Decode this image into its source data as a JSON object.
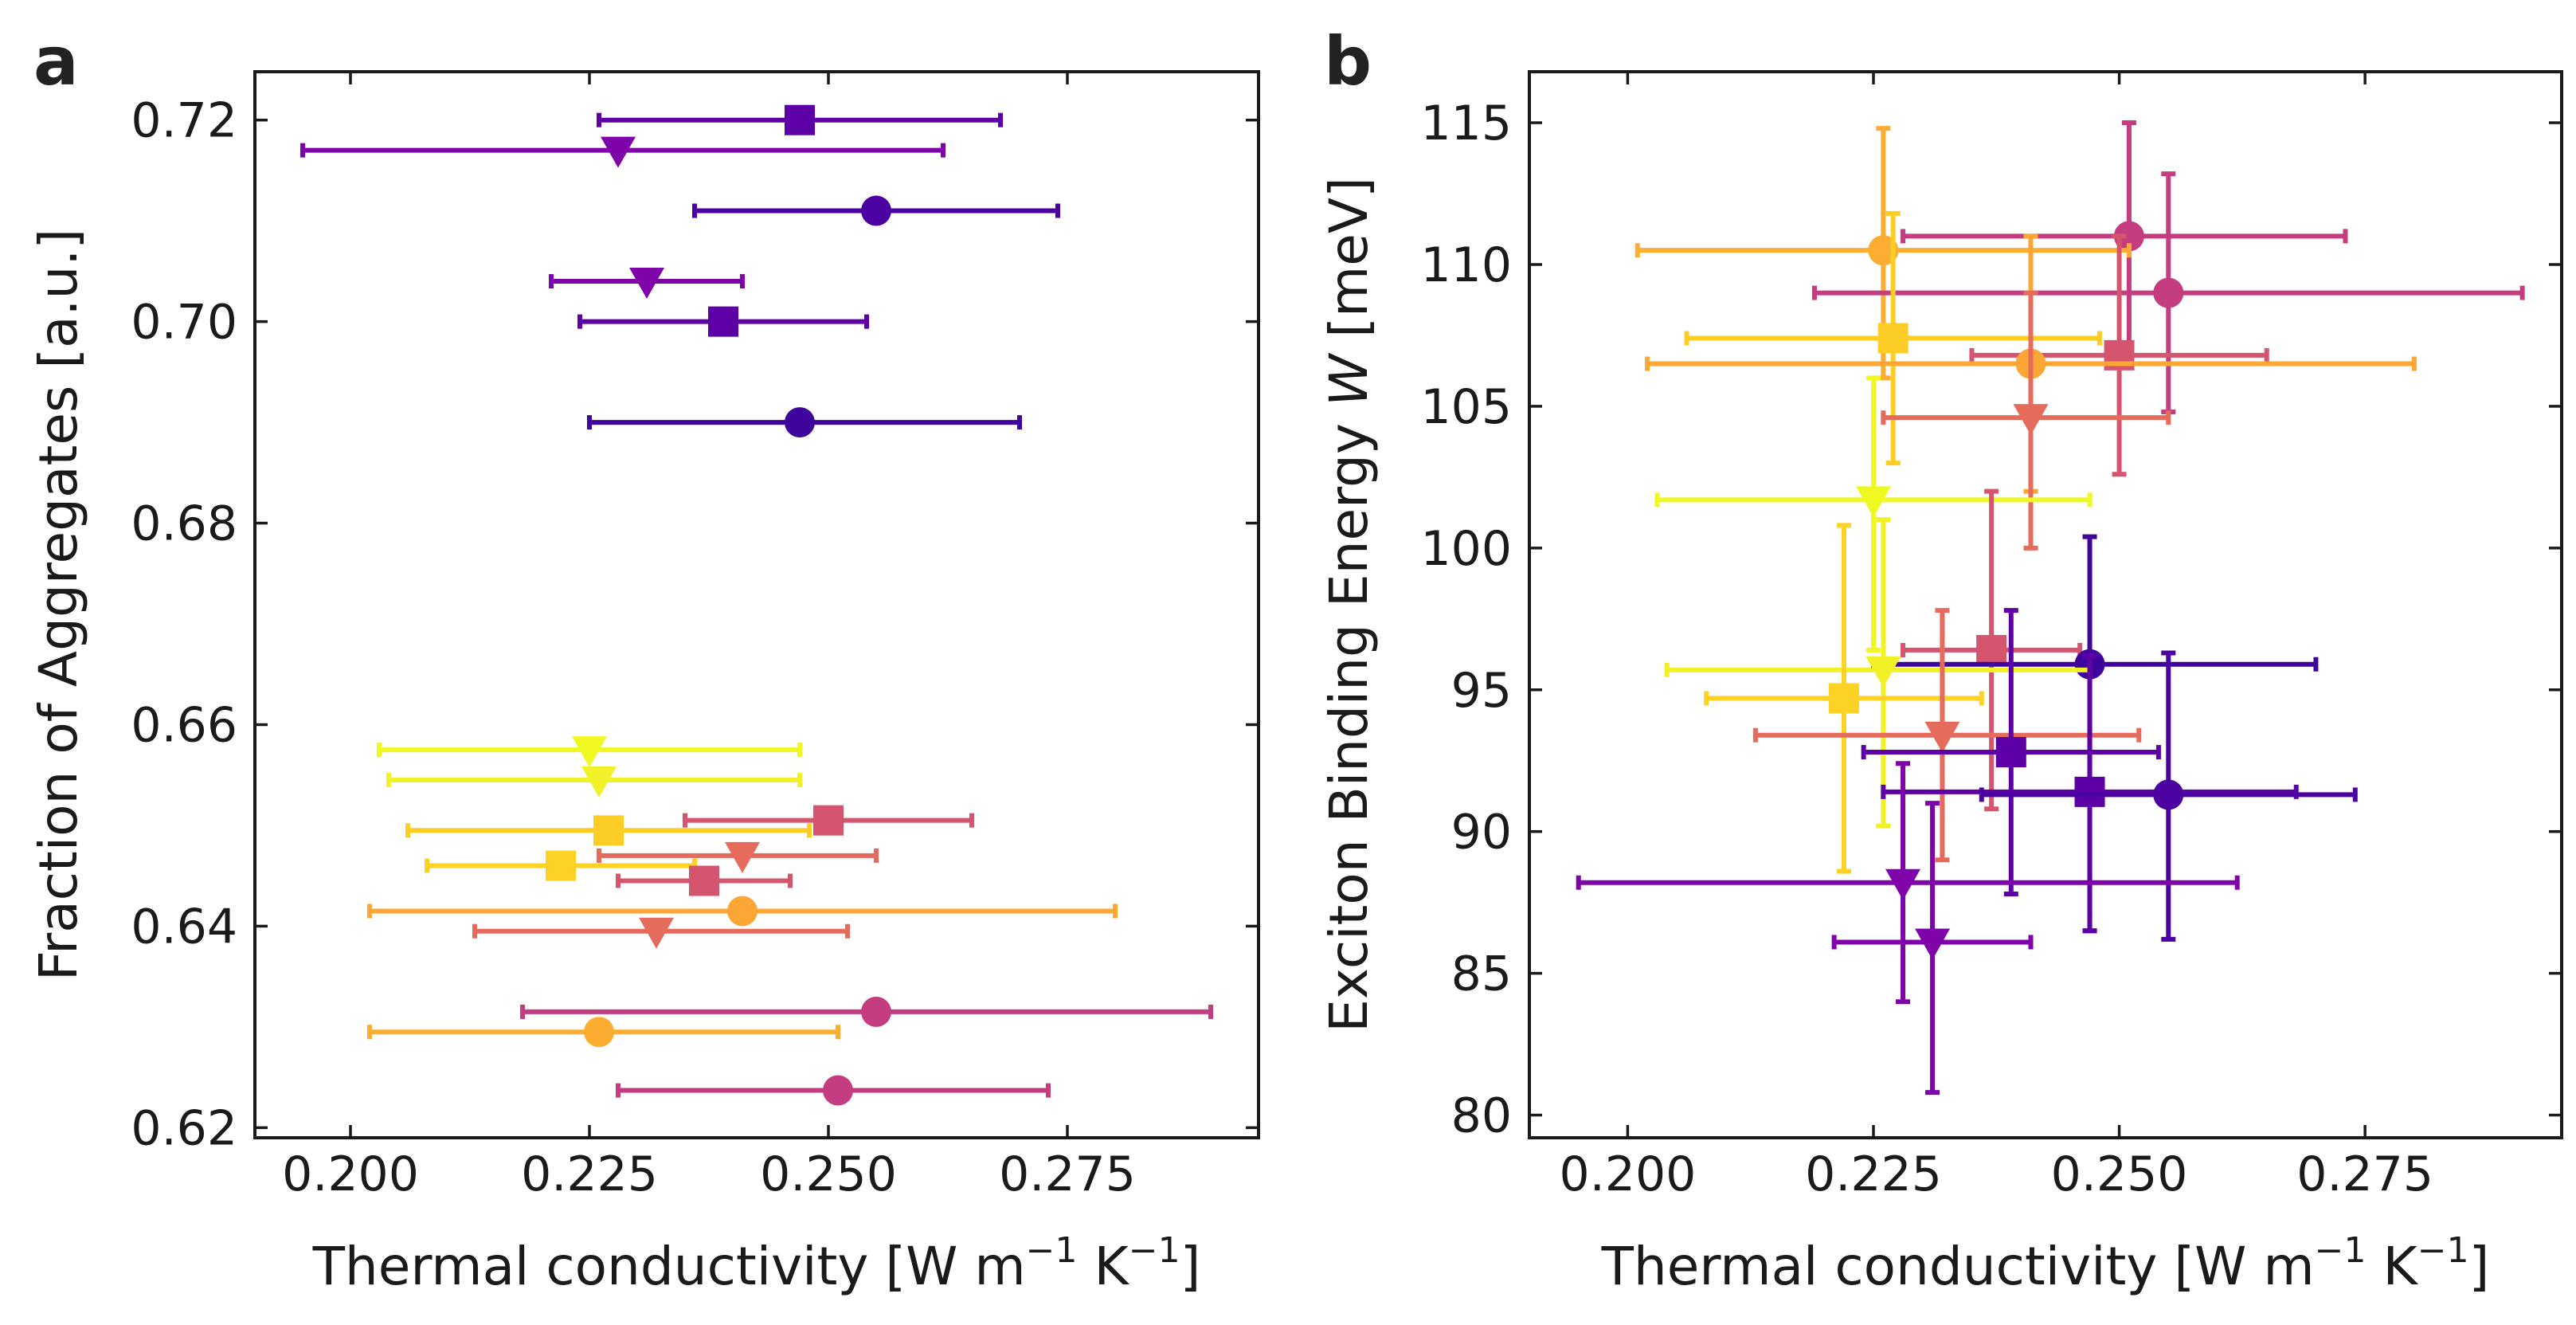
{
  "chart_data": [
    {
      "type": "scatter",
      "panel": "a",
      "xlabel": "Thermal conductivity [W m^-1 K^-1]",
      "xlabel_main": "Thermal conductivity [W m",
      "xlabel_exp1": "−1",
      "xlabel_mid": " K",
      "xlabel_exp2": "−1",
      "xlabel_end": "]",
      "ylabel": "Fraction of Aggregates [a.u.]",
      "xlim": [
        0.19,
        0.295
      ],
      "ylim": [
        0.619,
        0.7248
      ],
      "xticks": [
        0.2,
        0.225,
        0.25,
        0.275
      ],
      "xtick_labels": [
        "0.200",
        "0.225",
        "0.250",
        "0.275"
      ],
      "yticks": [
        0.62,
        0.64,
        0.66,
        0.68,
        0.7,
        0.72
      ],
      "ytick_labels": [
        "0.62",
        "0.64",
        "0.66",
        "0.68",
        "0.70",
        "0.72"
      ],
      "points": [
        {
          "x": 0.247,
          "y": 0.72,
          "xerr": [
            0.226,
            0.268
          ],
          "color": "#5d01a6",
          "marker": "square"
        },
        {
          "x": 0.228,
          "y": 0.717,
          "xerr": [
            0.195,
            0.262
          ],
          "color": "#7e03a8",
          "marker": "triangle"
        },
        {
          "x": 0.255,
          "y": 0.711,
          "xerr": [
            0.236,
            0.274
          ],
          "color": "#4c02a1",
          "marker": "circle"
        },
        {
          "x": 0.231,
          "y": 0.704,
          "xerr": [
            0.221,
            0.241
          ],
          "color": "#7e03a8",
          "marker": "triangle"
        },
        {
          "x": 0.239,
          "y": 0.7,
          "xerr": [
            0.224,
            0.254
          ],
          "color": "#5d01a6",
          "marker": "square"
        },
        {
          "x": 0.247,
          "y": 0.69,
          "xerr": [
            0.225,
            0.27
          ],
          "color": "#3e049c",
          "marker": "circle"
        },
        {
          "x": 0.225,
          "y": 0.6575,
          "xerr": [
            0.203,
            0.247
          ],
          "color": "#eff821",
          "marker": "triangle"
        },
        {
          "x": 0.226,
          "y": 0.6545,
          "xerr": [
            0.204,
            0.247
          ],
          "color": "#f2f127",
          "marker": "triangle"
        },
        {
          "x": 0.227,
          "y": 0.6495,
          "xerr": [
            0.206,
            0.248
          ],
          "color": "#fcce25",
          "marker": "square"
        },
        {
          "x": 0.25,
          "y": 0.6505,
          "xerr": [
            0.235,
            0.265
          ],
          "color": "#d5546e",
          "marker": "square"
        },
        {
          "x": 0.241,
          "y": 0.647,
          "xerr": [
            0.226,
            0.255
          ],
          "color": "#e56b5d",
          "marker": "triangle"
        },
        {
          "x": 0.222,
          "y": 0.646,
          "xerr": [
            0.208,
            0.236
          ],
          "color": "#fcd225",
          "marker": "square"
        },
        {
          "x": 0.237,
          "y": 0.6445,
          "xerr": [
            0.228,
            0.246
          ],
          "color": "#d5546e",
          "marker": "square"
        },
        {
          "x": 0.241,
          "y": 0.6415,
          "xerr": [
            0.202,
            0.28
          ],
          "color": "#fca636",
          "marker": "circle"
        },
        {
          "x": 0.232,
          "y": 0.6395,
          "xerr": [
            0.213,
            0.252
          ],
          "color": "#e56b5d",
          "marker": "triangle"
        },
        {
          "x": 0.255,
          "y": 0.6315,
          "xerr": [
            0.218,
            0.29
          ],
          "color": "#c33d80",
          "marker": "circle"
        },
        {
          "x": 0.226,
          "y": 0.6295,
          "xerr": [
            0.202,
            0.251
          ],
          "color": "#fdae32",
          "marker": "circle"
        },
        {
          "x": 0.251,
          "y": 0.6237,
          "xerr": [
            0.228,
            0.273
          ],
          "color": "#c33d80",
          "marker": "circle"
        }
      ]
    },
    {
      "type": "scatter",
      "panel": "b",
      "xlabel": "Thermal conductivity [W m^-1 K^-1]",
      "xlabel_main": "Thermal conductivity [W m",
      "xlabel_exp1": "−1",
      "xlabel_mid": " K",
      "xlabel_exp2": "−1",
      "xlabel_end": "]",
      "ylabel": "Exciton Binding Energy W [meV]",
      "ylabel_main": "Exciton Binding Energy ",
      "ylabel_var": "W",
      "ylabel_end": " [meV]",
      "xlim": [
        0.19,
        0.295
      ],
      "ylim": [
        79.2,
        116.8
      ],
      "xticks": [
        0.2,
        0.225,
        0.25,
        0.275
      ],
      "xtick_labels": [
        "0.200",
        "0.225",
        "0.250",
        "0.275"
      ],
      "yticks": [
        80,
        85,
        90,
        95,
        100,
        105,
        110,
        115
      ],
      "ytick_labels": [
        "80",
        "85",
        "90",
        "95",
        "100",
        "105",
        "110",
        "115"
      ],
      "points": [
        {
          "x": 0.251,
          "y": 111.0,
          "xerr": [
            0.228,
            0.273
          ],
          "yerr": [
            106.5,
            115.0
          ],
          "color": "#c33d80",
          "marker": "circle"
        },
        {
          "x": 0.226,
          "y": 110.5,
          "xerr": [
            0.201,
            0.251
          ],
          "yerr": [
            106.0,
            114.8
          ],
          "color": "#fdae32",
          "marker": "circle"
        },
        {
          "x": 0.255,
          "y": 109.0,
          "xerr": [
            0.219,
            0.291
          ],
          "yerr": [
            104.8,
            113.2
          ],
          "color": "#c33d80",
          "marker": "circle"
        },
        {
          "x": 0.227,
          "y": 107.4,
          "xerr": [
            0.206,
            0.248
          ],
          "yerr": [
            103.0,
            111.8
          ],
          "color": "#fcce25",
          "marker": "square"
        },
        {
          "x": 0.25,
          "y": 106.8,
          "xerr": [
            0.235,
            0.265
          ],
          "yerr": [
            102.6,
            111.0
          ],
          "color": "#d5546e",
          "marker": "square"
        },
        {
          "x": 0.241,
          "y": 106.5,
          "xerr": [
            0.202,
            0.28
          ],
          "yerr": [
            102.0,
            111.0
          ],
          "color": "#fca636",
          "marker": "circle"
        },
        {
          "x": 0.241,
          "y": 104.6,
          "xerr": [
            0.226,
            0.255
          ],
          "yerr": [
            100.0,
            109.0
          ],
          "color": "#e56b5d",
          "marker": "triangle"
        },
        {
          "x": 0.225,
          "y": 101.7,
          "xerr": [
            0.203,
            0.247
          ],
          "yerr": [
            96.4,
            106.0
          ],
          "color": "#eff821",
          "marker": "triangle"
        },
        {
          "x": 0.237,
          "y": 96.4,
          "xerr": [
            0.228,
            0.246
          ],
          "yerr": [
            90.8,
            102.0
          ],
          "color": "#d5546e",
          "marker": "square"
        },
        {
          "x": 0.247,
          "y": 95.9,
          "xerr": [
            0.225,
            0.27
          ],
          "yerr": [
            86.5,
            100.4
          ],
          "color": "#3e049c",
          "marker": "circle"
        },
        {
          "x": 0.226,
          "y": 95.7,
          "xerr": [
            0.204,
            0.247
          ],
          "yerr": [
            90.2,
            101.0
          ],
          "color": "#f2f127",
          "marker": "triangle"
        },
        {
          "x": 0.222,
          "y": 94.7,
          "xerr": [
            0.208,
            0.236
          ],
          "yerr": [
            88.6,
            100.8
          ],
          "color": "#fcd225",
          "marker": "square"
        },
        {
          "x": 0.232,
          "y": 93.4,
          "xerr": [
            0.213,
            0.252
          ],
          "yerr": [
            89.0,
            97.8
          ],
          "color": "#e56b5d",
          "marker": "triangle"
        },
        {
          "x": 0.239,
          "y": 92.8,
          "xerr": [
            0.224,
            0.254
          ],
          "yerr": [
            87.8,
            97.8
          ],
          "color": "#5d01a6",
          "marker": "square"
        },
        {
          "x": 0.247,
          "y": 91.4,
          "xerr": [
            0.226,
            0.268
          ],
          "yerr": [
            86.5,
            96.2
          ],
          "color": "#5d01a6",
          "marker": "square"
        },
        {
          "x": 0.255,
          "y": 91.3,
          "xerr": [
            0.236,
            0.274
          ],
          "yerr": [
            86.2,
            96.3
          ],
          "color": "#4c02a1",
          "marker": "circle"
        },
        {
          "x": 0.228,
          "y": 88.2,
          "xerr": [
            0.195,
            0.262
          ],
          "yerr": [
            84.0,
            92.4
          ],
          "color": "#7e03a8",
          "marker": "triangle"
        },
        {
          "x": 0.231,
          "y": 86.1,
          "xerr": [
            0.221,
            0.241
          ],
          "yerr": [
            80.8,
            91.0
          ],
          "color": "#7e03a8",
          "marker": "triangle"
        }
      ]
    }
  ]
}
